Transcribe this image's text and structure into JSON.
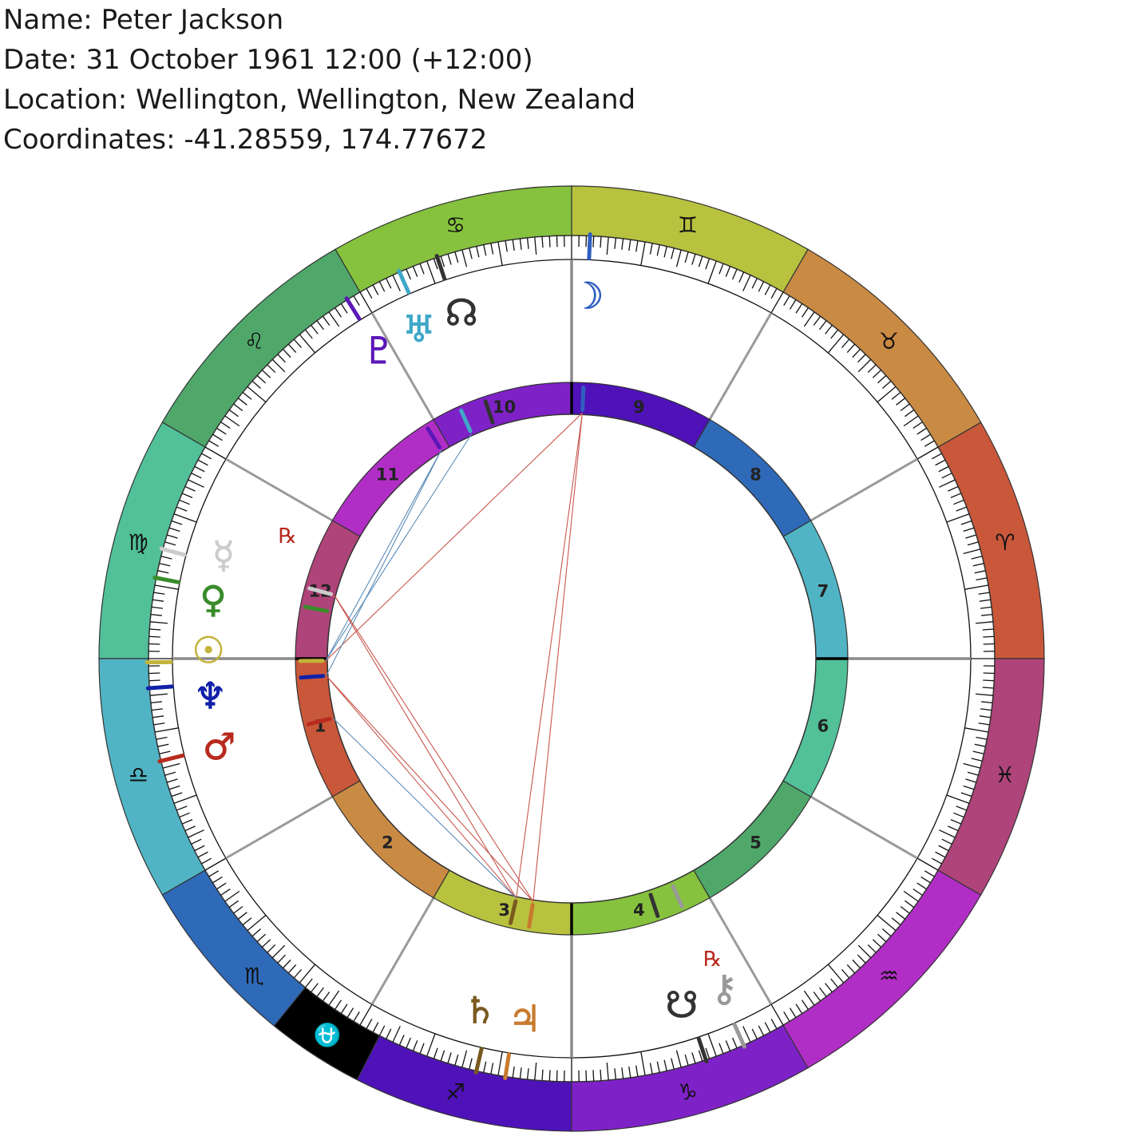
{
  "header": {
    "name_line": "Name: Peter Jackson",
    "date_line": "Date: 31 October 1961 12:00 (+12:00)",
    "location_line": "Location: Wellington, Wellington, New Zealand",
    "coordinates_line": "Coordinates: -41.28559, 174.77672"
  },
  "chart_meta": {
    "ascendant_degree": 180,
    "signs": [
      {
        "name": "Aries",
        "glyph": "♈",
        "color": "#C9573A"
      },
      {
        "name": "Taurus",
        "glyph": "♉",
        "color": "#C98A44"
      },
      {
        "name": "Gemini",
        "glyph": "♊",
        "color": "#B8C23E"
      },
      {
        "name": "Cancer",
        "glyph": "♋",
        "color": "#86C23E"
      },
      {
        "name": "Leo",
        "glyph": "♌",
        "color": "#4FA86A"
      },
      {
        "name": "Virgo",
        "glyph": "♍",
        "color": "#52C098"
      },
      {
        "name": "Libra",
        "glyph": "♎",
        "color": "#50B4C4"
      },
      {
        "name": "Scorpio",
        "glyph": "♏",
        "color": "#2F6AB8"
      },
      {
        "name": "Sagittarius",
        "glyph": "♐",
        "color": "#4E12B8"
      },
      {
        "name": "Capricorn",
        "glyph": "♑",
        "color": "#7E22C8"
      },
      {
        "name": "Aquarius",
        "glyph": "♒",
        "color": "#B12EC6"
      },
      {
        "name": "Pisces",
        "glyph": "♓",
        "color": "#AE4479"
      }
    ],
    "extra_segment": {
      "glyph": "⛎",
      "color": "#000000",
      "start_deg": 231,
      "end_deg": 243
    },
    "houses": [
      {
        "label": "1",
        "start_deg": 180,
        "color": "#C9573A"
      },
      {
        "label": "2",
        "start_deg": 210,
        "color": "#C98A44"
      },
      {
        "label": "3",
        "start_deg": 240,
        "color": "#B8C23E"
      },
      {
        "label": "4",
        "start_deg": 270,
        "color": "#86C23E"
      },
      {
        "label": "5",
        "start_deg": 300,
        "color": "#4FA86A"
      },
      {
        "label": "6",
        "start_deg": 330,
        "color": "#52C098"
      },
      {
        "label": "7",
        "start_deg": 0,
        "color": "#50B4C4"
      },
      {
        "label": "8",
        "start_deg": 30,
        "color": "#2F6AB8"
      },
      {
        "label": "9",
        "start_deg": 60,
        "color": "#4E12B8"
      },
      {
        "label": "10",
        "start_deg": 90,
        "color": "#7E22C8"
      },
      {
        "label": "11",
        "start_deg": 120,
        "color": "#B12EC6"
      },
      {
        "label": "12",
        "start_deg": 150,
        "color": "#AE4479"
      }
    ],
    "planets": [
      {
        "name": "Sun",
        "glyph": "☉",
        "deg": 180.5,
        "color": "#C2B33A"
      },
      {
        "name": "Moon",
        "glyph": "☽",
        "deg": 87.5,
        "color": "#2F5FC0"
      },
      {
        "name": "Mercury",
        "glyph": "☿",
        "deg": 165,
        "color": "#CCCCCC",
        "retro": "℞"
      },
      {
        "name": "Venus",
        "glyph": "♀",
        "deg": 169,
        "color": "#3A8C2A"
      },
      {
        "name": "Mars",
        "glyph": "♂",
        "deg": 194,
        "color": "#B82A1E"
      },
      {
        "name": "Jupiter",
        "glyph": "♃",
        "deg": 261,
        "color": "#C87A2E"
      },
      {
        "name": "Saturn",
        "glyph": "♄",
        "deg": 257,
        "color": "#7A5A20"
      },
      {
        "name": "Uranus",
        "glyph": "♅",
        "deg": 114,
        "color": "#3FA8C8"
      },
      {
        "name": "Neptune",
        "glyph": "♆",
        "deg": 184,
        "color": "#1020A8"
      },
      {
        "name": "Pluto",
        "glyph": "♇",
        "deg": 122,
        "color": "#5A18B8"
      },
      {
        "name": "North Node",
        "glyph": "☊",
        "deg": 108.5,
        "color": "#333333"
      },
      {
        "name": "South Node",
        "glyph": "☋",
        "deg": 288.5,
        "color": "#333333"
      },
      {
        "name": "Chiron",
        "glyph": "⚷",
        "deg": 294,
        "color": "#999999",
        "retro": "℞"
      }
    ],
    "aspects": [
      {
        "a": 87.5,
        "b": 180.5,
        "color": "#C9574E"
      },
      {
        "a": 87.5,
        "b": 257,
        "color": "#C9574E"
      },
      {
        "a": 87.5,
        "b": 261,
        "color": "#C9574E"
      },
      {
        "a": 122,
        "b": 180.5,
        "color": "#5C8CB8"
      },
      {
        "a": 122,
        "b": 184,
        "color": "#5C8CB8"
      },
      {
        "a": 114,
        "b": 180.5,
        "color": "#5C8CB8"
      },
      {
        "a": 165,
        "b": 257,
        "color": "#C9574E"
      },
      {
        "a": 165,
        "b": 261,
        "color": "#C9574E"
      },
      {
        "a": 184,
        "b": 257,
        "color": "#C9574E"
      },
      {
        "a": 184,
        "b": 261,
        "color": "#C9574E"
      },
      {
        "a": 194,
        "b": 257,
        "color": "#5C8CB8"
      }
    ]
  }
}
